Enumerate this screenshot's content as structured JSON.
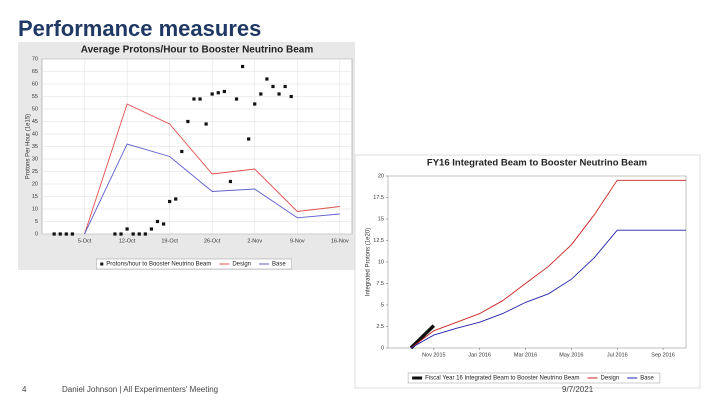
{
  "slide": {
    "title": "Performance measures",
    "page_number": "4",
    "footer": "Daniel Johnson | All Experimenters' Meeting",
    "date": "9/7/2021"
  },
  "chart_data": [
    {
      "type": "line",
      "title": "Average Protons/Hour to Booster Neutrino Beam",
      "y_label": "Protons Per Hour (1e15)",
      "xlim": [
        "28-Sep",
        "18-Nov"
      ],
      "xticks": [
        "5-Oct",
        "12-Oct",
        "19-Oct",
        "26-Oct",
        "2-Nov",
        "9-Nov",
        "16-Nov"
      ],
      "ylim": [
        0,
        70
      ],
      "yticks": [
        0,
        5,
        10,
        15,
        20,
        25,
        30,
        35,
        40,
        45,
        50,
        55,
        60,
        65,
        70
      ],
      "grid": true,
      "series": [
        {
          "name": "Protons/hour to Booster Neutrino Beam",
          "color": "#111111",
          "mode": "markers",
          "x": [
            "30-Sep",
            "1-Oct",
            "2-Oct",
            "3-Oct",
            "10-Oct",
            "11-Oct",
            "12-Oct",
            "13-Oct",
            "14-Oct",
            "15-Oct",
            "16-Oct",
            "17-Oct",
            "18-Oct",
            "19-Oct",
            "20-Oct",
            "21-Oct",
            "22-Oct",
            "23-Oct",
            "24-Oct",
            "25-Oct",
            "26-Oct",
            "27-Oct",
            "28-Oct",
            "29-Oct",
            "30-Oct",
            "31-Oct",
            "1-Nov",
            "2-Nov",
            "3-Nov",
            "4-Nov",
            "5-Nov",
            "6-Nov",
            "7-Nov",
            "8-Nov"
          ],
          "values": [
            0,
            0,
            0,
            0,
            0,
            0,
            2,
            0,
            0,
            0,
            2,
            5,
            4,
            13,
            14,
            33,
            45,
            54,
            54,
            44,
            56,
            56.5,
            57,
            21,
            54,
            67,
            38,
            52,
            56,
            62,
            59,
            56,
            59,
            55
          ]
        },
        {
          "name": "Design",
          "color": "#e05050",
          "mode": "lines",
          "x": [
            "5-Oct",
            "12-Oct",
            "19-Oct",
            "26-Oct",
            "2-Nov",
            "9-Nov",
            "16-Nov"
          ],
          "values": [
            0,
            52,
            44,
            24,
            26,
            9,
            11
          ]
        },
        {
          "name": "Base",
          "color": "#6060d0",
          "mode": "lines",
          "x": [
            "5-Oct",
            "12-Oct",
            "19-Oct",
            "26-Oct",
            "2-Nov",
            "9-Nov",
            "16-Nov"
          ],
          "values": [
            0,
            36,
            31,
            17,
            18,
            6.5,
            8
          ]
        }
      ]
    },
    {
      "type": "line",
      "title": "FY16 Integrated Beam to Booster Neutrino Beam",
      "y_label": "Integrated Protons (1e20)",
      "xlim": [
        "Sep 2015",
        "Oct 2016"
      ],
      "xticks": [
        "Nov 2015",
        "Jan 2016",
        "Mar 2016",
        "May 2016",
        "Jul 2016",
        "Sep 2016"
      ],
      "ylim": [
        0,
        20
      ],
      "yticks": [
        0,
        2.5,
        5,
        7.5,
        10,
        12.5,
        15,
        17.5,
        20
      ],
      "grid": false,
      "series": [
        {
          "name": "Fiscal Year 16 Integrated Beam to Booster Neutrino Beam",
          "color": "#111111",
          "mode": "thick",
          "x": [
            "Oct 2015",
            "Nov 2015"
          ],
          "values": [
            0,
            2.6
          ]
        },
        {
          "name": "Design",
          "color": "#cc2222",
          "mode": "lines",
          "x": [
            "Oct 2015",
            "Nov 2015",
            "Dec 2015",
            "Jan 2016",
            "Feb 2016",
            "Mar 2016",
            "Apr 2016",
            "May 2016",
            "Jun 2016",
            "Jul 2016",
            "Aug 2016",
            "Sep 2016",
            "Oct 2016"
          ],
          "values": [
            0,
            2,
            3,
            4,
            5.5,
            7.5,
            9.5,
            12,
            15.5,
            19.5,
            19.5,
            19.5,
            19.5
          ]
        },
        {
          "name": "Base",
          "color": "#2222aa",
          "mode": "lines",
          "x": [
            "Oct 2015",
            "Nov 2015",
            "Dec 2015",
            "Jan 2016",
            "Feb 2016",
            "Mar 2016",
            "Apr 2016",
            "May 2016",
            "Jun 2016",
            "Jul 2016",
            "Aug 2016",
            "Sep 2016",
            "Oct 2016"
          ],
          "values": [
            0,
            1.5,
            2.3,
            3,
            4,
            5.3,
            6.3,
            8,
            10.5,
            13.7,
            13.7,
            13.7,
            13.7
          ]
        }
      ]
    }
  ]
}
